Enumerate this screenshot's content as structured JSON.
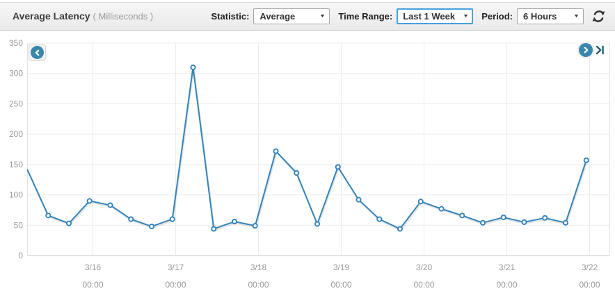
{
  "header": {
    "title": "Average Latency",
    "unit": "( Milliseconds )",
    "controls": {
      "statistic": {
        "label": "Statistic:",
        "value": "Average"
      },
      "time_range": {
        "label": "Time Range:",
        "value": "Last 1 Week"
      },
      "period": {
        "label": "Period:",
        "value": "6 Hours"
      }
    },
    "refresh_icon": "refresh-circular-arrows"
  },
  "nav": {
    "pan_left_icon": "chevron-left-circle",
    "pan_right_icon": "chevron-right-circle",
    "jump_to_latest_icon": "chevron-right-to-bar"
  },
  "colors": {
    "line": "#3183bd",
    "marker_fill": "#ffffff",
    "nav_circle": "#3a87ad",
    "focused_dropdown_border": "#46a2df",
    "jump_icon": "#235e77",
    "axis_text": "#999999",
    "gridline": "#ececec",
    "axis_line": "#c9c9c9"
  },
  "chart_data": {
    "type": "line",
    "title": "Average Latency",
    "ylabel": "Milliseconds",
    "ylim": [
      0,
      350
    ],
    "yticks": [
      0,
      50,
      100,
      150,
      200,
      250,
      300,
      350
    ],
    "x_interval": "6 hours",
    "x_tick_labels": [
      {
        "date": "3/16",
        "time": "00:00"
      },
      {
        "date": "3/17",
        "time": "00:00"
      },
      {
        "date": "3/18",
        "time": "00:00"
      },
      {
        "date": "3/19",
        "time": "00:00"
      },
      {
        "date": "3/20",
        "time": "00:00"
      },
      {
        "date": "3/21",
        "time": "00:00"
      },
      {
        "date": "3/22",
        "time": "00:00"
      }
    ],
    "grid": true,
    "legend_position": "none",
    "series": [
      {
        "name": "Average Latency",
        "color": "#3183bd",
        "values": [
          141,
          66,
          53,
          90,
          83,
          60,
          48,
          60,
          310,
          44,
          56,
          49,
          172,
          136,
          52,
          146,
          92,
          60,
          44,
          89,
          77,
          66,
          54,
          63,
          55,
          62,
          54,
          157
        ]
      }
    ]
  }
}
